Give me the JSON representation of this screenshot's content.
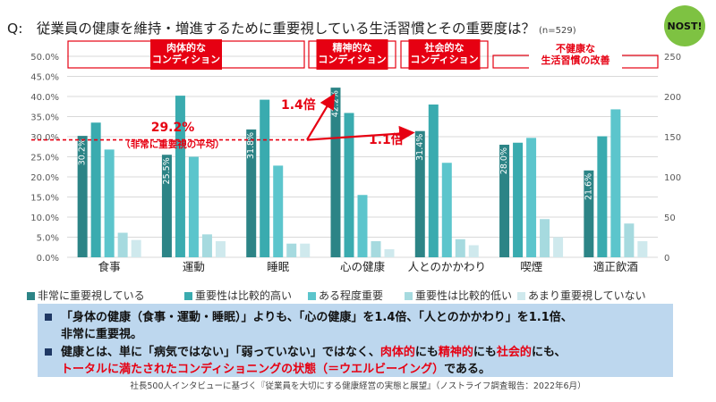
{
  "question": {
    "text": "Q:　従業員の健康を維持・増進するために重要視している生活習慣とその重要度は？",
    "n": "(n=529)"
  },
  "logo": {
    "text": "NOST!"
  },
  "colors": {
    "s1": "#2c8486",
    "s2": "#3aabaf",
    "s3": "#5cc5cc",
    "s4": "#a6dadf",
    "s5": "#cfe9ed",
    "red": "#e60012",
    "summary_bg": "#bdd7ee"
  },
  "groups": {
    "physical": "肉体的な\nコンディション",
    "mental": "精神的な\nコンディション",
    "social": "社会的な\nコンディション",
    "unhealthy": "不健康な\n生活習慣の改善"
  },
  "annotations": {
    "avg_value": "29.2%",
    "avg_label": "（非常に重要視の平均）",
    "ratio_mental": "1.4倍",
    "ratio_social": "1.1倍"
  },
  "chart_data": {
    "type": "bar",
    "categories": [
      "食事",
      "運動",
      "睡眠",
      "心の健康",
      "人とのかかわり",
      "喫煙",
      "適正飲酒"
    ],
    "series": [
      {
        "name": "非常に重要視している",
        "values": [
          30.2,
          25.5,
          31.8,
          42.2,
          31.4,
          28.0,
          21.6
        ],
        "labels": [
          "30.2%",
          "25.5%",
          "31.8%",
          "42.2%",
          "31.4%",
          "28.0%",
          "21.6%"
        ]
      },
      {
        "name": "重要性は比較的高い",
        "values": [
          33.5,
          40.2,
          39.2,
          35.9,
          38.0,
          28.5,
          30.1
        ]
      },
      {
        "name": "ある程度重要",
        "values": [
          26.8,
          25.0,
          22.8,
          15.5,
          23.5,
          29.7,
          36.8
        ]
      },
      {
        "name": "重要性は比較的低い",
        "values": [
          6.1,
          5.7,
          3.4,
          4.0,
          4.5,
          9.5,
          8.4
        ]
      },
      {
        "name": "あまり重要視していない",
        "values": [
          4.3,
          4.0,
          3.4,
          2.0,
          3.0,
          5.0,
          4.0
        ]
      }
    ],
    "y_left": {
      "min": 0,
      "max": 50,
      "step": 5,
      "ticks": [
        "0.0%",
        "5.0%",
        "10.0%",
        "15.0%",
        "20.0%",
        "25.0%",
        "30.0%",
        "35.0%",
        "40.0%",
        "45.0%",
        "50.0%"
      ]
    },
    "y_right": {
      "min": 0,
      "max": 250,
      "ticks": [
        "0",
        "50",
        "100",
        "150",
        "200",
        "250"
      ]
    },
    "average_line": 29.2
  },
  "summary": {
    "b1_a": "「身体の健康（食事・運動・睡眠）」よりも、「心の健康」を1.4倍、「人とのかかわり」を1.1倍、",
    "b1_b": "非常に重要視。",
    "b2_a": "健康とは、単に「病気ではない」「弱っていない」ではなく、",
    "b2_r1": "肉体的",
    "b2_m1": "にも",
    "b2_r2": "精神的",
    "b2_m2": "にも",
    "b2_r3": "社会的",
    "b2_m3": "にも、",
    "b2_r4": "トータルに満たされたコンディショニングの状態（＝ウエルビーイング）",
    "b2_end": "である。"
  },
  "source": "社長500人インタビューに基づく『従業員を大切にする健康経営の実態と展望』（ノストライフ調査報告：2022年6月）"
}
